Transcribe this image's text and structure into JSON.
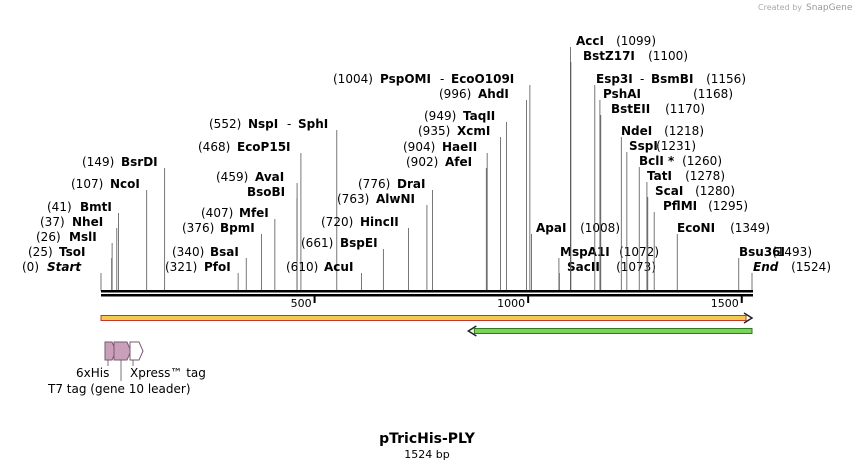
{
  "credit": {
    "prefix": "Created by",
    "brand": "SnapGene"
  },
  "map": {
    "title": "pTricHis-PLY",
    "length_label": "1524 bp",
    "length": 1524,
    "ticks": [
      {
        "pos": 500,
        "label": "500"
      },
      {
        "pos": 1000,
        "label": "1000"
      },
      {
        "pos": 1500,
        "label": "1500"
      }
    ],
    "colors": {
      "backbone": "#000000",
      "orf_forward_fill": "#f3c94f",
      "orf_forward_border": "#c0392b",
      "orf_reverse_fill": "#7cd35c",
      "orf_reverse_border": "#2e7d1b",
      "feature_fill": "#c9a0bb",
      "feature_border": "#7a5a6e"
    }
  },
  "sites": [
    {
      "pos_label": "(0)",
      "name": "Start",
      "italic": true,
      "pos": 0
    },
    {
      "pos_label": "(25)",
      "name": "TsoI",
      "pos": 25
    },
    {
      "pos_label": "(26)",
      "name": "MslI",
      "pos": 26
    },
    {
      "pos_label": "(37)",
      "name": "NheI",
      "pos": 37
    },
    {
      "pos_label": "(41)",
      "name": "BmtI",
      "pos": 41
    },
    {
      "pos_label": "(107)",
      "name": "NcoI",
      "pos": 107
    },
    {
      "pos_label": "(149)",
      "name": "BsrDI",
      "pos": 149
    },
    {
      "pos_label": "(321)",
      "name": "PfoI",
      "pos": 321
    },
    {
      "pos_label": "(340)",
      "name": "BsaI",
      "pos": 340
    },
    {
      "pos_label": "(376)",
      "name": "BpmI",
      "pos": 376
    },
    {
      "pos_label": "(407)",
      "name": "MfeI",
      "pos": 407
    },
    {
      "pos_label": "",
      "name": "BsoBI",
      "pos": 459
    },
    {
      "pos_label": "(459)",
      "name": "AvaI",
      "pos": 459
    },
    {
      "pos_label": "(468)",
      "name": "EcoP15I",
      "pos": 468
    },
    {
      "pos_label": "(552)",
      "name": "NspI",
      "name2": "SphI",
      "pos": 552
    },
    {
      "pos_label": "(610)",
      "name": "AcuI",
      "pos": 610
    },
    {
      "pos_label": "(661)",
      "name": "BspEI",
      "pos": 661
    },
    {
      "pos_label": "(720)",
      "name": "HincII",
      "pos": 720
    },
    {
      "pos_label": "(763)",
      "name": "AlwNI",
      "pos": 763
    },
    {
      "pos_label": "(776)",
      "name": "DraI",
      "pos": 776
    },
    {
      "pos_label": "(902)",
      "name": "AfeI",
      "pos": 902
    },
    {
      "pos_label": "(904)",
      "name": "HaeII",
      "pos": 904
    },
    {
      "pos_label": "(935)",
      "name": "XcmI",
      "pos": 935
    },
    {
      "pos_label": "(949)",
      "name": "TaqII",
      "pos": 949
    },
    {
      "pos_label": "(996)",
      "name": "AhdI",
      "pos": 996
    },
    {
      "pos_label": "(1004)",
      "name": "PspOMI",
      "name2": "EcoO109I",
      "pos": 1004
    },
    {
      "pos_label": "(1008)",
      "name": "ApaI",
      "pos": 1008
    },
    {
      "pos_label": "(1072)",
      "name": "MspA1I",
      "pos": 1072
    },
    {
      "pos_label": "(1073)",
      "name": "SacII",
      "pos": 1073
    },
    {
      "pos_label": "(1099)",
      "name": "AccI",
      "pos": 1099
    },
    {
      "pos_label": "(1100)",
      "name": "BstZ17I",
      "pos": 1100
    },
    {
      "pos_label": "(1156)",
      "name": "Esp3I",
      "name2": "BsmBI",
      "pos": 1156
    },
    {
      "pos_label": "(1168)",
      "name": "PshAI",
      "pos": 1168
    },
    {
      "pos_label": "(1170)",
      "name": "BstEII",
      "pos": 1170
    },
    {
      "pos_label": "(1218)",
      "name": "NdeI",
      "pos": 1218
    },
    {
      "pos_label": "(1231)",
      "name": "SspI",
      "pos": 1231
    },
    {
      "pos_label": "(1260)",
      "name": "BclI *",
      "pos": 1260
    },
    {
      "pos_label": "(1278)",
      "name": "TatI",
      "pos": 1278
    },
    {
      "pos_label": "(1280)",
      "name": "ScaI",
      "pos": 1280
    },
    {
      "pos_label": "(1295)",
      "name": "PflMI",
      "pos": 1295
    },
    {
      "pos_label": "(1349)",
      "name": "EcoNI",
      "pos": 1349
    },
    {
      "pos_label": "(1493)",
      "name": "Bsu36I",
      "pos": 1493
    },
    {
      "pos_label": "(1524)",
      "name": "End",
      "italic": true,
      "pos": 1524
    }
  ],
  "orfs": [
    {
      "name": "orf-forward",
      "start": 0,
      "end": 1524,
      "direction": "forward"
    },
    {
      "name": "orf-reverse",
      "start": 860,
      "end": 1524,
      "direction": "reverse"
    }
  ],
  "features": [
    {
      "label": "6xHis",
      "start": 3,
      "end": 30
    },
    {
      "label": "Xpress™ tag",
      "start": 31,
      "end": 75
    },
    {
      "label": "T7 tag (gene 10 leader)",
      "start": 76,
      "end": 125
    }
  ]
}
